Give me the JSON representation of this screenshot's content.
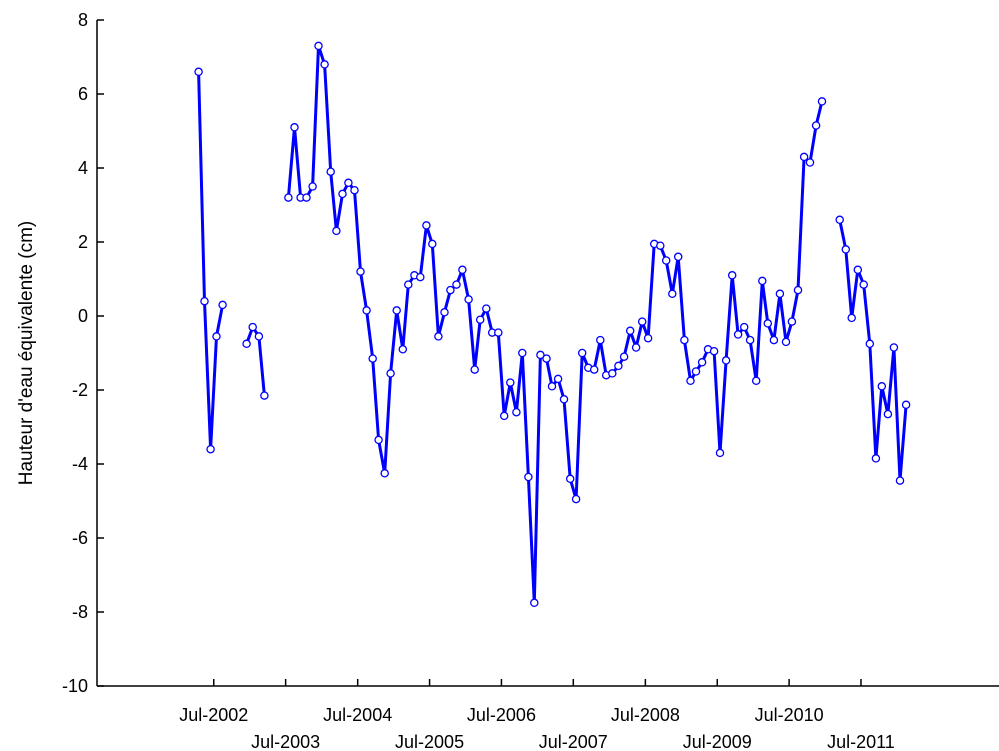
{
  "chart_data": {
    "type": "line",
    "title": "",
    "xlabel": "",
    "ylabel": "Hauteur d'eau équivalente (cm)",
    "ylim": [
      -10,
      8
    ],
    "yticks": [
      -10,
      -8,
      -6,
      -4,
      -2,
      0,
      2,
      4,
      6,
      8
    ],
    "xlim": [
      "2000-11-15",
      "2013-06-01"
    ],
    "xtick_dates": [
      "2002-07-01",
      "2003-07-01",
      "2004-07-01",
      "2005-07-01",
      "2006-07-01",
      "2007-07-01",
      "2008-07-01",
      "2009-07-01",
      "2010-07-01",
      "2011-07-01"
    ],
    "xtick_labels": [
      "Jul-2002",
      "Jul-2003",
      "Jul-2004",
      "Jul-2005",
      "Jul-2006",
      "Jul-2007",
      "Jul-2008",
      "Jul-2009",
      "Jul-2010",
      "Jul-2011"
    ],
    "grid": false,
    "marker": "hollow circle",
    "line_color": "#0000ff",
    "series": [
      {
        "segments": [
          [
            [
              "2002-04-15",
              6.6
            ],
            [
              "2002-05-15",
              0.4
            ],
            [
              "2002-06-15",
              -3.6
            ],
            [
              "2002-07-15",
              -0.55
            ],
            [
              "2002-08-15",
              0.3
            ]
          ],
          [
            [
              "2002-12-15",
              -0.75
            ],
            [
              "2003-01-15",
              -0.3
            ],
            [
              "2003-02-15",
              -0.55
            ],
            [
              "2003-03-15",
              -2.15
            ]
          ],
          [
            [
              "2003-07-15",
              3.2
            ],
            [
              "2003-08-15",
              5.1
            ],
            [
              "2003-09-15",
              3.2
            ],
            [
              "2003-10-15",
              3.2
            ],
            [
              "2003-11-15",
              3.5
            ],
            [
              "2003-12-15",
              7.3
            ],
            [
              "2004-01-15",
              6.8
            ],
            [
              "2004-02-15",
              3.9
            ],
            [
              "2004-03-15",
              2.3
            ],
            [
              "2004-04-15",
              3.3
            ],
            [
              "2004-05-15",
              3.6
            ],
            [
              "2004-06-15",
              3.4
            ],
            [
              "2004-07-15",
              1.2
            ],
            [
              "2004-08-15",
              0.15
            ],
            [
              "2004-09-15",
              -1.15
            ],
            [
              "2004-10-15",
              -3.35
            ],
            [
              "2004-11-15",
              -4.25
            ],
            [
              "2004-12-15",
              -1.55
            ],
            [
              "2005-01-15",
              0.15
            ],
            [
              "2005-02-15",
              -0.9
            ],
            [
              "2005-03-15",
              0.85
            ],
            [
              "2005-04-15",
              1.1
            ],
            [
              "2005-05-15",
              1.05
            ],
            [
              "2005-06-15",
              2.45
            ],
            [
              "2005-07-15",
              1.95
            ],
            [
              "2005-08-15",
              -0.55
            ],
            [
              "2005-09-15",
              0.1
            ],
            [
              "2005-10-15",
              0.7
            ],
            [
              "2005-11-15",
              0.85
            ],
            [
              "2005-12-15",
              1.25
            ],
            [
              "2006-01-15",
              0.45
            ],
            [
              "2006-02-15",
              -1.45
            ],
            [
              "2006-03-15",
              -0.1
            ],
            [
              "2006-04-15",
              0.2
            ],
            [
              "2006-05-15",
              -0.45
            ],
            [
              "2006-06-15",
              -0.45
            ],
            [
              "2006-07-15",
              -2.7
            ],
            [
              "2006-08-15",
              -1.8
            ],
            [
              "2006-09-15",
              -2.6
            ],
            [
              "2006-10-15",
              -1.0
            ],
            [
              "2006-11-15",
              -4.35
            ],
            [
              "2006-12-15",
              -7.75
            ],
            [
              "2007-01-15",
              -1.05
            ],
            [
              "2007-02-15",
              -1.15
            ],
            [
              "2007-03-15",
              -1.9
            ],
            [
              "2007-04-15",
              -1.7
            ],
            [
              "2007-05-15",
              -2.25
            ],
            [
              "2007-06-15",
              -4.4
            ],
            [
              "2007-07-15",
              -4.95
            ],
            [
              "2007-08-15",
              -1.0
            ],
            [
              "2007-09-15",
              -1.4
            ],
            [
              "2007-10-15",
              -1.45
            ],
            [
              "2007-11-15",
              -0.65
            ],
            [
              "2007-12-15",
              -1.6
            ],
            [
              "2008-01-15",
              -1.55
            ],
            [
              "2008-02-15",
              -1.35
            ],
            [
              "2008-03-15",
              -1.1
            ],
            [
              "2008-04-15",
              -0.4
            ],
            [
              "2008-05-15",
              -0.85
            ],
            [
              "2008-06-15",
              -0.15
            ],
            [
              "2008-07-15",
              -0.6
            ],
            [
              "2008-08-15",
              1.95
            ],
            [
              "2008-09-15",
              1.9
            ],
            [
              "2008-10-15",
              1.5
            ],
            [
              "2008-11-15",
              0.6
            ],
            [
              "2008-12-15",
              1.6
            ],
            [
              "2009-01-15",
              -0.65
            ],
            [
              "2009-02-15",
              -1.75
            ],
            [
              "2009-03-15",
              -1.5
            ],
            [
              "2009-04-15",
              -1.25
            ],
            [
              "2009-05-15",
              -0.9
            ],
            [
              "2009-06-15",
              -0.95
            ],
            [
              "2009-07-15",
              -3.7
            ],
            [
              "2009-08-15",
              -1.2
            ],
            [
              "2009-09-15",
              1.1
            ],
            [
              "2009-10-15",
              -0.5
            ],
            [
              "2009-11-15",
              -0.3
            ],
            [
              "2009-12-15",
              -0.65
            ],
            [
              "2010-01-15",
              -1.75
            ],
            [
              "2010-02-15",
              0.95
            ],
            [
              "2010-03-15",
              -0.2
            ],
            [
              "2010-04-15",
              -0.65
            ],
            [
              "2010-05-15",
              0.6
            ],
            [
              "2010-06-15",
              -0.7
            ],
            [
              "2010-07-15",
              -0.15
            ],
            [
              "2010-08-15",
              0.7
            ],
            [
              "2010-09-15",
              4.3
            ],
            [
              "2010-10-15",
              4.15
            ],
            [
              "2010-11-15",
              5.15
            ],
            [
              "2010-12-15",
              5.8
            ]
          ],
          [
            [
              "2011-03-15",
              2.6
            ],
            [
              "2011-04-15",
              1.8
            ],
            [
              "2011-05-15",
              -0.05
            ],
            [
              "2011-06-15",
              1.25
            ],
            [
              "2011-07-15",
              0.85
            ],
            [
              "2011-08-15",
              -0.75
            ],
            [
              "2011-09-15",
              -3.85
            ],
            [
              "2011-10-15",
              -1.9
            ],
            [
              "2011-11-15",
              -2.65
            ],
            [
              "2011-12-15",
              -0.85
            ],
            [
              "2012-01-15",
              -4.45
            ],
            [
              "2012-02-15",
              -2.4
            ]
          ]
        ]
      }
    ]
  }
}
